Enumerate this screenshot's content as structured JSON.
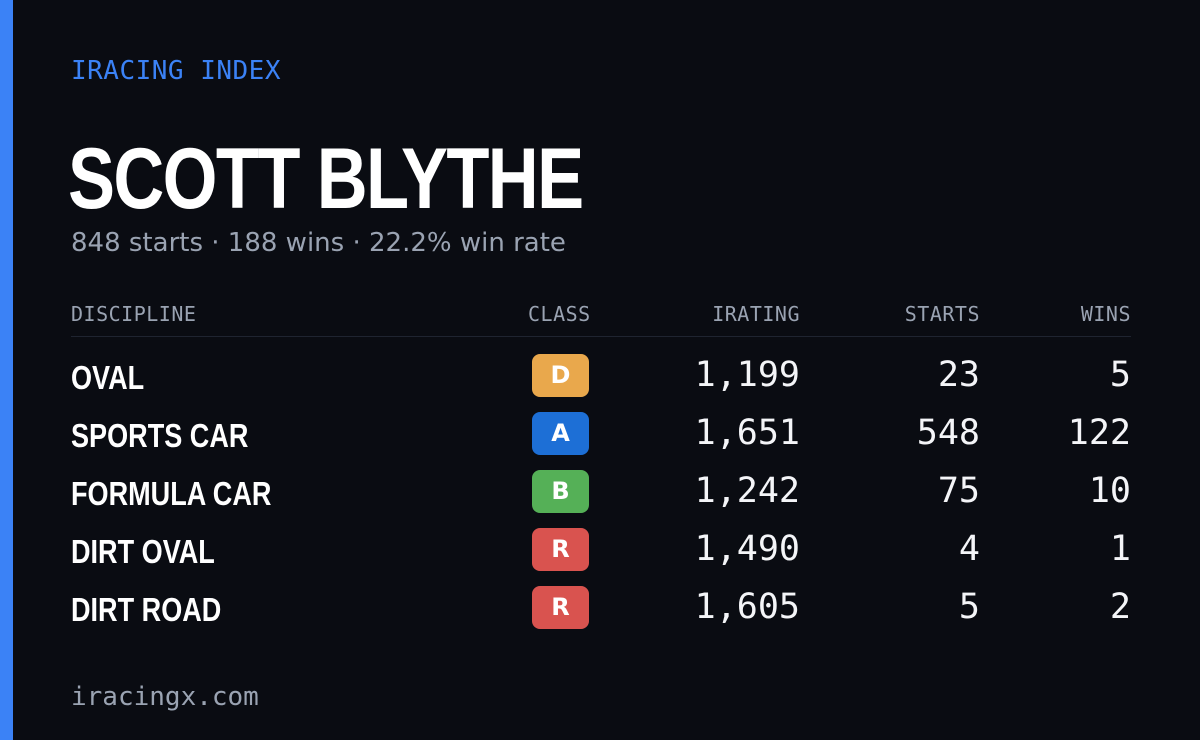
{
  "brand": "IRACING INDEX",
  "player": {
    "name": "SCOTT BLYTHE",
    "summary": "848 starts · 188 wins · 22.2% win rate"
  },
  "table": {
    "headers": {
      "discipline": "DISCIPLINE",
      "class": "CLASS",
      "irating": "IRATING",
      "starts": "STARTS",
      "wins": "WINS"
    },
    "rows": [
      {
        "discipline": "OVAL",
        "class": "D",
        "class_color": "#e9a84c",
        "irating": "1,199",
        "starts": "23",
        "wins": "5"
      },
      {
        "discipline": "SPORTS CAR",
        "class": "A",
        "class_color": "#1d6fd6",
        "irating": "1,651",
        "starts": "548",
        "wins": "122"
      },
      {
        "discipline": "FORMULA CAR",
        "class": "B",
        "class_color": "#55b057",
        "irating": "1,242",
        "starts": "75",
        "wins": "10"
      },
      {
        "discipline": "DIRT OVAL",
        "class": "R",
        "class_color": "#d9534f",
        "irating": "1,490",
        "starts": "4",
        "wins": "1"
      },
      {
        "discipline": "DIRT ROAD",
        "class": "R",
        "class_color": "#d9534f",
        "irating": "1,605",
        "starts": "5",
        "wins": "2"
      }
    ]
  },
  "footer": "iracingx.com",
  "colors": {
    "accent": "#3b82f6",
    "background": "#0a0c12",
    "muted_text": "#9aa3b2"
  }
}
